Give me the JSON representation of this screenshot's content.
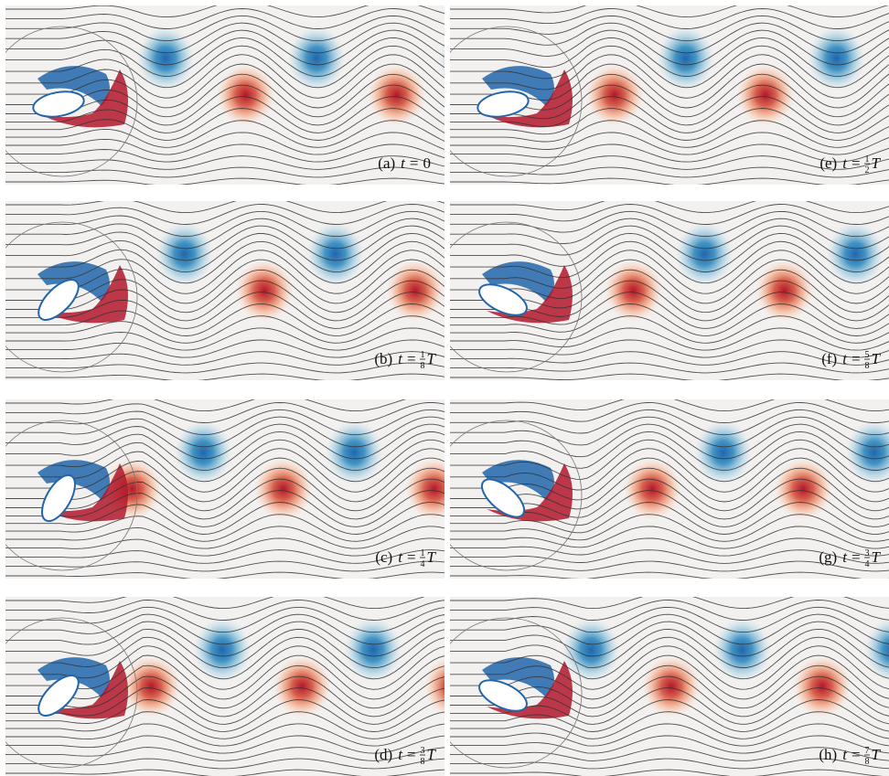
{
  "symbol": "t",
  "equals": "=",
  "panels": [
    {
      "tag": "(a)",
      "value": "0"
    },
    {
      "tag": "(b)",
      "numerator": "1",
      "denominator": "8",
      "period": "T"
    },
    {
      "tag": "(c)",
      "numerator": "1",
      "denominator": "4",
      "period": "T"
    },
    {
      "tag": "(d)",
      "numerator": "3",
      "denominator": "8",
      "period": "T"
    },
    {
      "tag": "(e)",
      "numerator": "1",
      "denominator": "2",
      "period": "T"
    },
    {
      "tag": "(f)",
      "numerator": "5",
      "denominator": "8",
      "period": "T"
    },
    {
      "tag": "(g)",
      "numerator": "3",
      "denominator": "4",
      "period": "T"
    },
    {
      "tag": "(h)",
      "numerator": "7",
      "denominator": "8",
      "period": "T"
    }
  ]
}
